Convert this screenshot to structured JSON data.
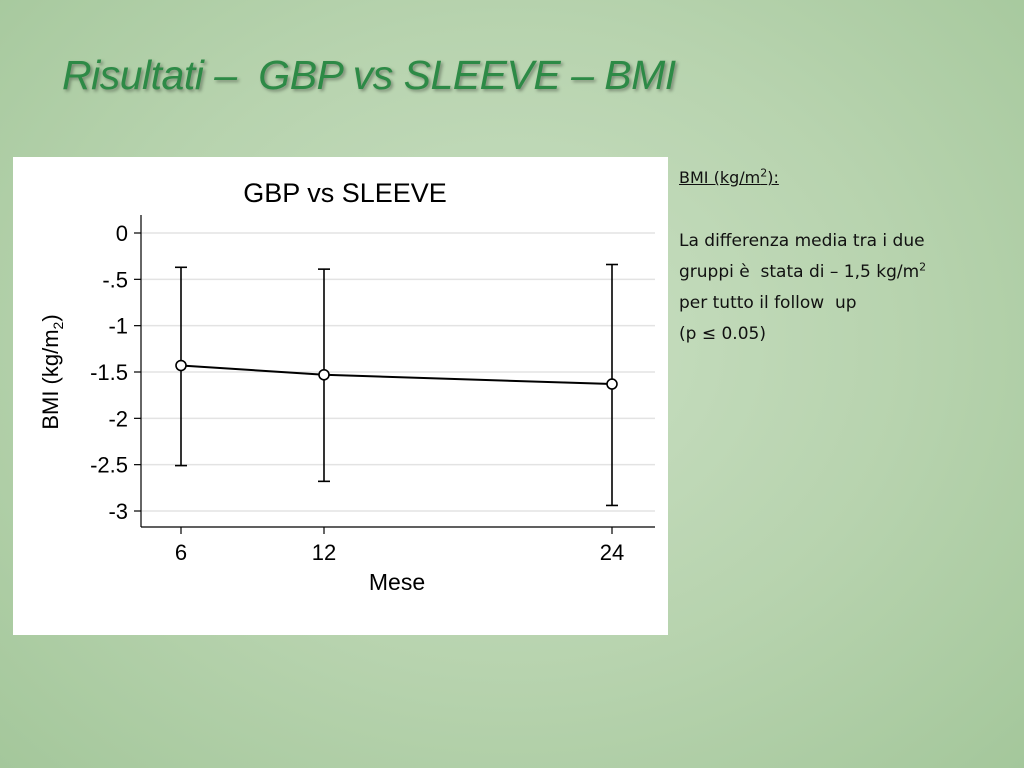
{
  "slide": {
    "title": "Risultati –  GBP vs SLEEVE – BMI"
  },
  "sidebar": {
    "heading": {
      "text": "BMI (kg/m",
      "sup": "2",
      "suffix": "):"
    },
    "line1": "La differenza media tra i due",
    "line2": {
      "text": "gruppi è  stata di – 1,5 kg/m",
      "sup": "2"
    },
    "line3": "per tutto il follow  up",
    "line4": "(p ≤ 0.05)"
  },
  "chart_data": {
    "type": "line",
    "title": "GBP vs SLEEVE",
    "xlabel": "Mese",
    "ylabel": {
      "text": "BMI (kg/m",
      "sub": "2",
      "suffix": ")"
    },
    "x": [
      6,
      12,
      24
    ],
    "xticks": [
      "6",
      "12",
      "24"
    ],
    "yticks": [
      0,
      -0.5,
      -1,
      -1.5,
      -2,
      -2.5,
      -3
    ],
    "ytick_labels": [
      "0",
      "-.5",
      "-1",
      "-1.5",
      "-2",
      "-2.5",
      "-3"
    ],
    "ylim": [
      -3,
      0
    ],
    "grid": true,
    "series": [
      {
        "values": [
          -1.43,
          -1.53,
          -1.63
        ],
        "lower": [
          -2.51,
          -2.68,
          -2.94
        ],
        "upper": [
          -0.37,
          -0.39,
          -0.34
        ]
      }
    ],
    "line_color": "#000000",
    "grid_color": "#e3e3e3"
  }
}
